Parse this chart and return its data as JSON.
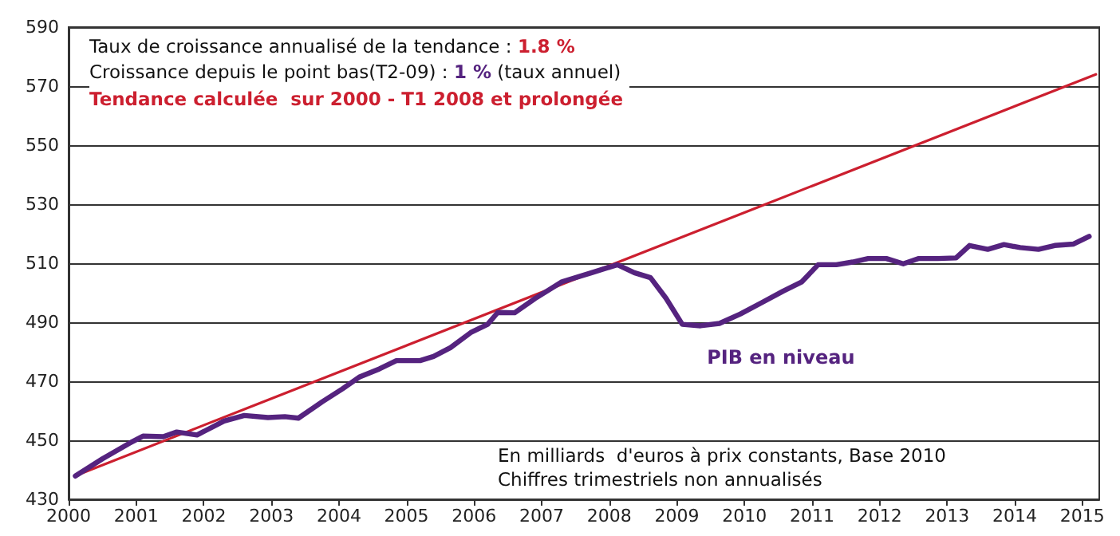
{
  "chart_data": {
    "type": "line",
    "annotations": [
      "Taux de croissance annualisé de la tendance : ",
      "1.8 %",
      "Croissance depuis le point bas(T2-09) : ",
      "1 %",
      " (taux annuel)",
      "Tendance calculée  sur 2000 - T1 2008 et prolongée",
      "En milliards  d'euros à prix constants, Base 2010",
      "Chiffres trimestriels non annualisés"
    ],
    "series": [
      {
        "color": "#cc1f2f",
        "x": [
          2000.1,
          2015.2
        ],
        "values": [
          438,
          574
        ]
      },
      {
        "name": "PIB en niveau",
        "color": "#55237f",
        "x": [
          2000.1,
          2000.5,
          2000.9,
          2001.1,
          2001.4,
          2001.6,
          2001.9,
          2002.3,
          2002.6,
          2002.95,
          2003.2,
          2003.4,
          2003.75,
          2004.05,
          2004.3,
          2004.6,
          2004.85,
          2005.2,
          2005.4,
          2005.65,
          2005.95,
          2006.2,
          2006.35,
          2006.6,
          2006.9,
          2007.3,
          2007.74,
          2008.12,
          2008.37,
          2008.61,
          2008.84,
          2009.08,
          2009.35,
          2009.63,
          2009.94,
          2010.26,
          2010.57,
          2010.85,
          2011.09,
          2011.36,
          2011.6,
          2011.83,
          2012.1,
          2012.35,
          2012.58,
          2012.86,
          2013.13,
          2013.33,
          2013.6,
          2013.84,
          2014.08,
          2014.35,
          2014.59,
          2014.87,
          2015.1
        ],
        "values": [
          437.9,
          443.7,
          449,
          451.4,
          451.2,
          452.8,
          451.8,
          456.5,
          458.4,
          457.7,
          458,
          457.5,
          463,
          467.4,
          471.4,
          474.2,
          477,
          477,
          478.4,
          481.4,
          486.5,
          489.3,
          493.3,
          493.2,
          498,
          503.7,
          506.8,
          509.5,
          506.8,
          505.1,
          498.1,
          489.3,
          488.8,
          489.6,
          492.8,
          496.7,
          500.5,
          503.7,
          509.5,
          509.5,
          510.4,
          511.6,
          511.6,
          509.8,
          511.6,
          511.6,
          511.8,
          516,
          514.7,
          516.3,
          515.3,
          514.7,
          516,
          516.5,
          519.1
        ]
      }
    ],
    "xlim": [
      2000,
      2015.25
    ],
    "xticks": [
      2000,
      2001,
      2002,
      2003,
      2004,
      2005,
      2006,
      2007,
      2008,
      2009,
      2010,
      2011,
      2012,
      2013,
      2014,
      2015
    ],
    "ylim": [
      430,
      590
    ],
    "yticks": [
      430,
      450,
      470,
      490,
      510,
      530,
      550,
      570,
      590
    ],
    "grid": "y",
    "legend": false,
    "marker": "none",
    "line_style": "solid"
  }
}
